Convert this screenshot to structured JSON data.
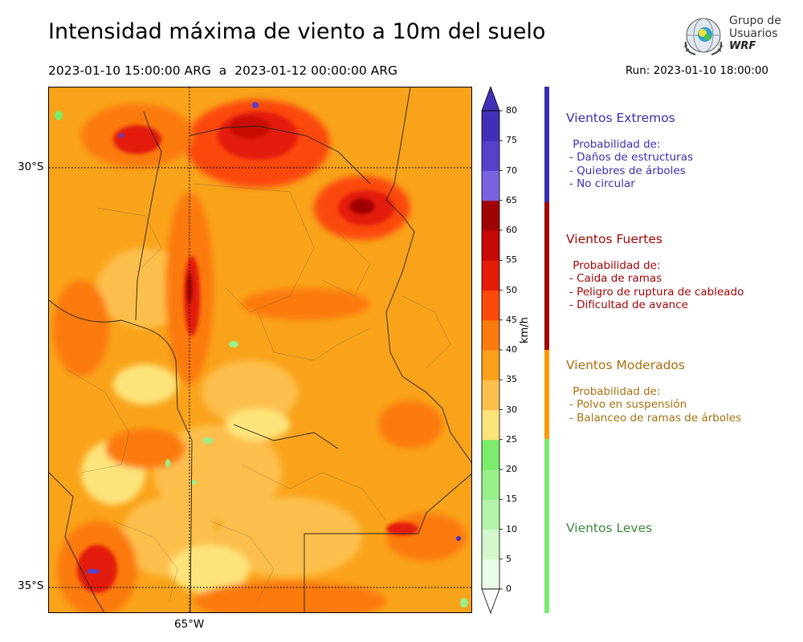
{
  "header": {
    "title": "Intensidad máxima de viento a 10m del suelo",
    "period": "2023-01-10 15:00:00 ARG  a  2023-01-12 00:00:00 ARG",
    "run": "Run: 2023-01-10 18:00:00"
  },
  "logo": {
    "line1": "Grupo de",
    "line2": "Usuarios",
    "line3": "WRF"
  },
  "map": {
    "lat_labels": [
      "30°S",
      "35°S"
    ],
    "lon_labels": [
      "65°W"
    ],
    "background_color": "#f9a31a"
  },
  "colorbar": {
    "unit": "km/h",
    "ticks": [
      "0",
      "5",
      "10",
      "15",
      "20",
      "25",
      "30",
      "35",
      "40",
      "45",
      "50",
      "55",
      "60",
      "65",
      "70",
      "75",
      "80"
    ],
    "colors": [
      "#eafde6",
      "#d2f8cb",
      "#b4f4a8",
      "#99f08a",
      "#7bec6c",
      "#fde47a",
      "#fdbf4c",
      "#fba01a",
      "#fb7a0e",
      "#fb4a0a",
      "#e31e08",
      "#c70a05",
      "#a10303",
      "#7b62e0",
      "#5840cc",
      "#4030b8"
    ]
  },
  "categories": [
    {
      "title": "Vientos Extremos",
      "color": "#3b2eb0",
      "desc": " Probabilidad de:\n- Daños de estructuras\n- Quiebres de árboles\n- No circular"
    },
    {
      "title": "Vientos Fuertes",
      "color": "#a20505",
      "desc": " Probabilidad de:\n- Caida de ramas\n- Peligro de ruptura de cableado\n- Dificultad de avance"
    },
    {
      "title": "Vientos Moderados",
      "color": "#a87010",
      "desc": " Probabilidad de:\n- Polvo en suspensión\n- Balanceo de ramas de árboles"
    },
    {
      "title": "Vientos Leves",
      "color": "#3a8a3a",
      "desc": ""
    }
  ]
}
